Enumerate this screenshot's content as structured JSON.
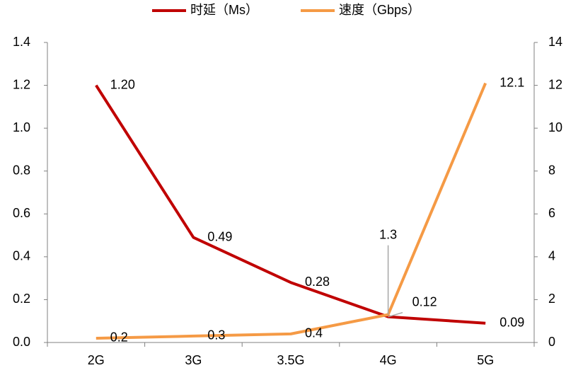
{
  "chart_data": {
    "type": "line",
    "categories": [
      "2G",
      "3G",
      "3.5G",
      "4G",
      "5G"
    ],
    "series": [
      {
        "name": "时延（Ms）",
        "color": "#c00000",
        "values": [
          1.2,
          0.49,
          0.28,
          0.12,
          0.09
        ],
        "value_labels": [
          "1.20",
          "0.49",
          "0.28",
          "0.12",
          "0.09"
        ]
      },
      {
        "name": "速度（Gbps）",
        "color": "#f59a45",
        "axis": "y2",
        "values": [
          0.2,
          0.3,
          0.4,
          1.3,
          12.1
        ]
      }
    ],
    "ylim": [
      0,
      1.4
    ],
    "yticks": [
      {
        "value": 0,
        "label": "0.0"
      },
      0.2,
      0.4,
      0.6,
      0.8,
      {
        "value": 1,
        "label": "1.0"
      },
      1.2,
      1.4
    ],
    "y2lim": [
      0,
      14
    ],
    "y2ticks": [
      0,
      2,
      4,
      6,
      8,
      10,
      12,
      14
    ],
    "grid": false,
    "legend": "top"
  }
}
